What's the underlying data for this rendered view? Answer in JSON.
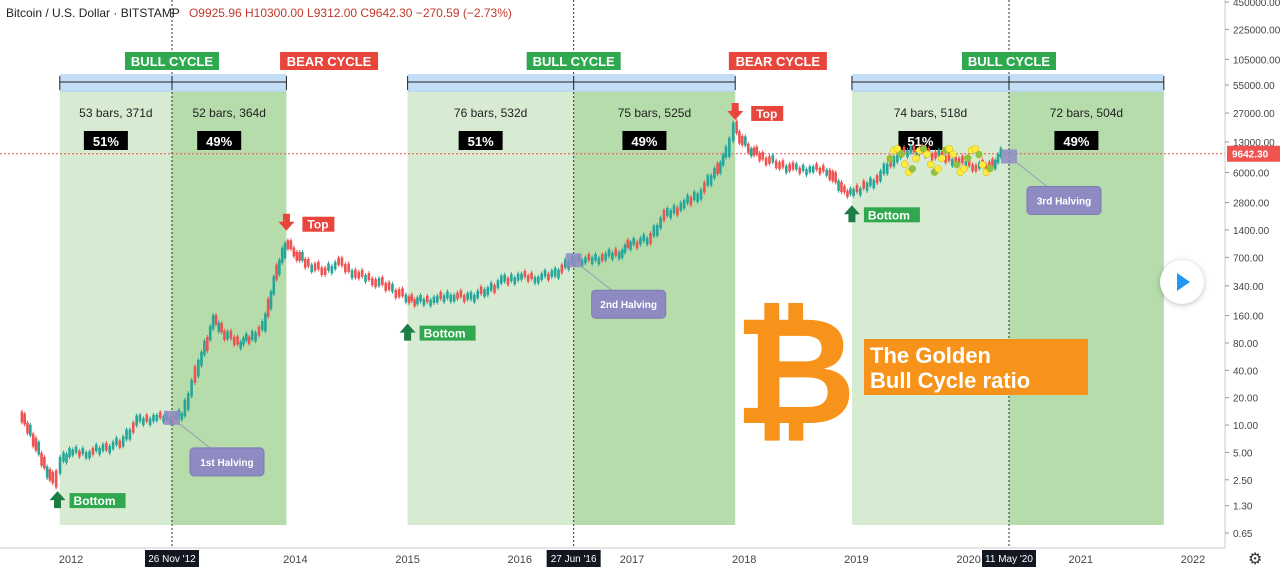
{
  "header": {
    "symbol": "Bitcoin / U.S. Dollar · BITSTAMP",
    "ohlc": "O9925.96 H10300.00 L9312.00 C9642.30 −270.59 (−2.73%)"
  },
  "current_price_label": "9642.30",
  "colors": {
    "bull_light": "#d7ebd2",
    "bull_dark": "#b6dcac",
    "bull_label": "#2fa84f",
    "bear_label": "#e8453c",
    "measure": "#b9d8f4",
    "halving": "#8e8bc3",
    "candle_up": "#26a69a",
    "candle_down": "#ef5350",
    "bitcoin": "#f7931a",
    "caption_bg": "#f7931a"
  },
  "chart_data": {
    "type": "line",
    "x_axis": {
      "ticks": [
        "2012",
        "2014",
        "2015",
        "2016",
        "2017",
        "2018",
        "2019",
        "2020",
        "2021",
        "2022"
      ],
      "highlighted_dates": [
        "26 Nov '12",
        "27 Jun '16",
        "11 May '20"
      ]
    },
    "y_axis": {
      "scale": "log",
      "ticks": [
        "450000.00",
        "225000.00",
        "105000.00",
        "55000.00",
        "27000.00",
        "13000.00",
        "6000.00",
        "2800.00",
        "1400.00",
        "700.00",
        "340.00",
        "160.00",
        "80.00",
        "40.00",
        "20.00",
        "10.00",
        "5.00",
        "2.50",
        "1.30",
        "0.65"
      ]
    },
    "series": [
      {
        "x": [
          2011.55,
          2011.65,
          2011.75,
          2011.85,
          2011.92,
          2012.0,
          2012.15,
          2012.3,
          2012.45,
          2012.6,
          2012.75,
          2012.9,
          2013.0,
          2013.15,
          2013.28,
          2013.38,
          2013.5,
          2013.6,
          2013.72,
          2013.82,
          2013.92,
          2014.0,
          2014.1,
          2014.25,
          2014.4,
          2014.55,
          2014.7,
          2014.85,
          2015.0,
          2015.1,
          2015.25,
          2015.4,
          2015.55,
          2015.7,
          2015.85,
          2016.0,
          2016.15,
          2016.3,
          2016.48,
          2016.6,
          2016.75,
          2016.9,
          2017.0,
          2017.15,
          2017.3,
          2017.45,
          2017.6,
          2017.75,
          2017.85,
          2017.92,
          2017.97,
          2018.05,
          2018.15,
          2018.3,
          2018.45,
          2018.6,
          2018.75,
          2018.88,
          2018.96,
          2019.05,
          2019.2,
          2019.35,
          2019.5,
          2019.6,
          2019.75,
          2019.9,
          2020.05,
          2020.2,
          2020.3
        ],
        "y": [
          13,
          8,
          4,
          2.3,
          4,
          5,
          5,
          5.5,
          6.5,
          11,
          12,
          12,
          13,
          50,
          140,
          100,
          80,
          90,
          120,
          400,
          1000,
          800,
          600,
          500,
          600,
          450,
          400,
          320,
          250,
          230,
          240,
          270,
          250,
          300,
          380,
          430,
          420,
          450,
          650,
          650,
          700,
          800,
          1000,
          1100,
          2000,
          2600,
          3500,
          6000,
          10000,
          19000,
          14000,
          11000,
          9000,
          7500,
          6500,
          6500,
          6400,
          3800,
          3700,
          4000,
          5200,
          9000,
          10500,
          10200,
          9000,
          8000,
          7200,
          7000,
          9642.3
        ]
      }
    ],
    "cycle_bands": [
      {
        "from": 2011.9,
        "to": 2012.9,
        "bars": "53 bars, 371d",
        "pct": "51%",
        "shade": "light"
      },
      {
        "from": 2012.9,
        "to": 2013.92,
        "bars": "52 bars, 364d",
        "pct": "49%",
        "shade": "dark"
      },
      {
        "from": 2015.0,
        "to": 2016.48,
        "bars": "76 bars, 532d",
        "pct": "51%",
        "shade": "light"
      },
      {
        "from": 2016.48,
        "to": 2017.92,
        "bars": "75 bars, 525d",
        "pct": "49%",
        "shade": "dark"
      },
      {
        "from": 2018.96,
        "to": 2020.36,
        "bars": "74 bars, 518d",
        "pct": "51%",
        "shade": "light"
      },
      {
        "from": 2020.36,
        "to": 2021.74,
        "bars": "72 bars, 504d",
        "pct": "49%",
        "shade": "dark"
      }
    ],
    "cycle_labels": [
      {
        "x": 2012.9,
        "text": "BULL CYCLE",
        "kind": "bull"
      },
      {
        "x": 2014.3,
        "text": "BEAR CYCLE",
        "kind": "bear"
      },
      {
        "x": 2016.48,
        "text": "BULL CYCLE",
        "kind": "bull"
      },
      {
        "x": 2018.3,
        "text": "BEAR CYCLE",
        "kind": "bear"
      },
      {
        "x": 2020.36,
        "text": "BULL CYCLE",
        "kind": "bull"
      }
    ],
    "markers": [
      {
        "x": 2011.88,
        "y": 2.3,
        "text": "Bottom",
        "kind": "bottom"
      },
      {
        "x": 2013.92,
        "y": 1150,
        "text": "Top",
        "kind": "top"
      },
      {
        "x": 2015.0,
        "y": 160,
        "text": "Bottom",
        "kind": "bottom"
      },
      {
        "x": 2017.92,
        "y": 19000,
        "text": "Top",
        "kind": "top"
      },
      {
        "x": 2018.96,
        "y": 3200,
        "text": "Bottom",
        "kind": "bottom"
      }
    ],
    "halvings": [
      {
        "x": 2012.9,
        "y": 12,
        "text": "1st Halving"
      },
      {
        "x": 2016.48,
        "y": 650,
        "text": "2nd Halving"
      },
      {
        "x": 2020.36,
        "y": 9000,
        "text": "3rd Halving"
      }
    ],
    "annotation": {
      "line1": "The Golden",
      "line2": "Bull Cycle ratio"
    },
    "current_price": 9642.3,
    "grid": false,
    "legend": "none"
  }
}
